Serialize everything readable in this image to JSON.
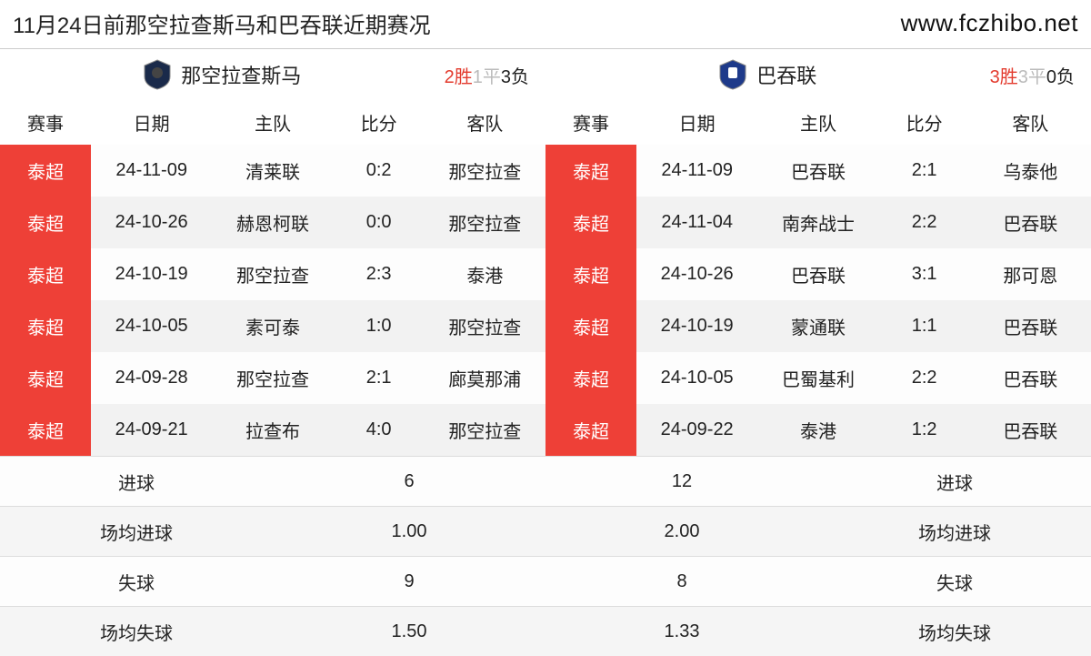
{
  "header": {
    "title": "11月24日前那空拉查斯马和巴吞联近期赛况",
    "url": "www.fczhibo.net"
  },
  "columns": {
    "league": "赛事",
    "date": "日期",
    "home": "主队",
    "score": "比分",
    "away": "客队"
  },
  "colors": {
    "league_tag_bg": "#ee4037",
    "league_tag_text": "#ffffff",
    "win_color": "#e33b2e",
    "draw_color": "#bbbbbb",
    "loss_color": "#222222",
    "row_even_bg": "#fdfdfd",
    "row_odd_bg": "#f2f2f2"
  },
  "teams": {
    "left": {
      "name": "那空拉查斯马",
      "logo_colors": {
        "primary": "#1a2a4a",
        "accent": "#c0c0c0"
      },
      "record": {
        "win_num": "2",
        "win_suffix": "胜",
        "draw_num": "1",
        "draw_suffix": "平",
        "loss_num": "3",
        "loss_suffix": "负"
      },
      "matches": [
        {
          "league": "泰超",
          "date": "24-11-09",
          "home": "清莱联",
          "score": "0:2",
          "away": "那空拉查"
        },
        {
          "league": "泰超",
          "date": "24-10-26",
          "home": "赫恩柯联",
          "score": "0:0",
          "away": "那空拉查"
        },
        {
          "league": "泰超",
          "date": "24-10-19",
          "home": "那空拉查",
          "score": "2:3",
          "away": "泰港"
        },
        {
          "league": "泰超",
          "date": "24-10-05",
          "home": "素可泰",
          "score": "1:0",
          "away": "那空拉查"
        },
        {
          "league": "泰超",
          "date": "24-09-28",
          "home": "那空拉查",
          "score": "2:1",
          "away": "廊莫那浦"
        },
        {
          "league": "泰超",
          "date": "24-09-21",
          "home": "拉查布",
          "score": "4:0",
          "away": "那空拉查"
        }
      ]
    },
    "right": {
      "name": "巴吞联",
      "logo_colors": {
        "primary": "#1e3a8a",
        "accent": "#fbbf24"
      },
      "record": {
        "win_num": "3",
        "win_suffix": "胜",
        "draw_num": "3",
        "draw_suffix": "平",
        "loss_num": "0",
        "loss_suffix": "负"
      },
      "matches": [
        {
          "league": "泰超",
          "date": "24-11-09",
          "home": "巴吞联",
          "score": "2:1",
          "away": "乌泰他"
        },
        {
          "league": "泰超",
          "date": "24-11-04",
          "home": "南奔战士",
          "score": "2:2",
          "away": "巴吞联"
        },
        {
          "league": "泰超",
          "date": "24-10-26",
          "home": "巴吞联",
          "score": "3:1",
          "away": "那可恩"
        },
        {
          "league": "泰超",
          "date": "24-10-19",
          "home": "蒙通联",
          "score": "1:1",
          "away": "巴吞联"
        },
        {
          "league": "泰超",
          "date": "24-10-05",
          "home": "巴蜀基利",
          "score": "2:2",
          "away": "巴吞联"
        },
        {
          "league": "泰超",
          "date": "24-09-22",
          "home": "泰港",
          "score": "1:2",
          "away": "巴吞联"
        }
      ]
    }
  },
  "stats": {
    "rows": [
      {
        "left_label": "进球",
        "left_value": "6",
        "right_value": "12",
        "right_label": "进球"
      },
      {
        "left_label": "场均进球",
        "left_value": "1.00",
        "right_value": "2.00",
        "right_label": "场均进球"
      },
      {
        "left_label": "失球",
        "left_value": "9",
        "right_value": "8",
        "right_label": "失球"
      },
      {
        "left_label": "场均失球",
        "left_value": "1.50",
        "right_value": "1.33",
        "right_label": "场均失球"
      }
    ]
  }
}
